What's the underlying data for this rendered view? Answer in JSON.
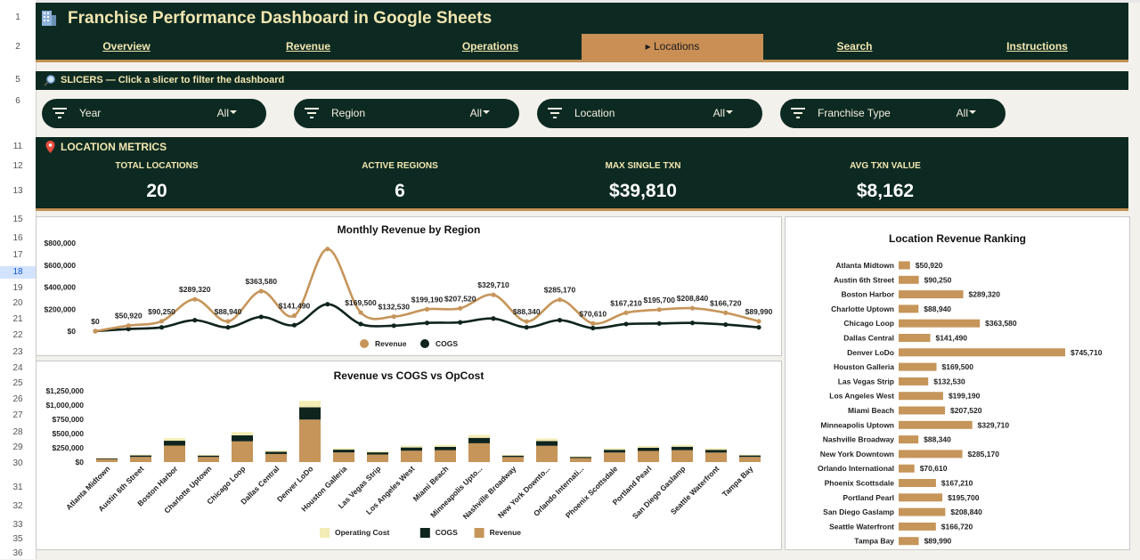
{
  "row_numbers": [
    "1",
    "2",
    "5",
    "6",
    "11",
    "12",
    "13",
    "15",
    "16",
    "17",
    "18",
    "19",
    "20",
    "21",
    "22",
    "23",
    "24",
    "25",
    "26",
    "27",
    "28",
    "29",
    "30",
    "31",
    "32",
    "33",
    "35",
    "36"
  ],
  "header": {
    "title": "Franchise Performance Dashboard in Google Sheets",
    "icon": "building-icon"
  },
  "nav": {
    "tabs": [
      "Overview",
      "Revenue",
      "Operations",
      "▸ Locations",
      "Search",
      "Instructions"
    ],
    "active": "▸ Locations"
  },
  "slicers_band": {
    "label": "SLICERS — Click a slicer to filter the dashboard",
    "icon": "magnifier-icon"
  },
  "slicers": [
    {
      "label": "Year",
      "value": "All"
    },
    {
      "label": "Region",
      "value": "All"
    },
    {
      "label": "Location",
      "value": "All"
    },
    {
      "label": "Franchise Type",
      "value": "All"
    }
  ],
  "metrics": {
    "title": "LOCATION METRICS",
    "icon": "pin-icon",
    "items": [
      {
        "label": "TOTAL LOCATIONS",
        "value": "20"
      },
      {
        "label": "ACTIVE REGIONS",
        "value": "6"
      },
      {
        "label": "MAX SINGLE TXN",
        "value": "$39,810"
      },
      {
        "label": "AVG TXN VALUE",
        "value": "$8,162"
      }
    ]
  },
  "colors": {
    "dark": "#0d2a22",
    "gold": "#c29155",
    "cream": "#f2e6b0",
    "revenue": "#c6955a",
    "cogs": "#0f241d",
    "opcost": "#f3ecb4"
  },
  "chart_data": [
    {
      "type": "line",
      "title": "Monthly Revenue by Region",
      "ylim": [
        0,
        800000
      ],
      "ytick_labels": [
        "$0",
        "$200,000",
        "$400,000",
        "$600,000",
        "$800,000"
      ],
      "legend": "bottom",
      "series": [
        {
          "name": "Revenue",
          "values": [
            0,
            50920,
            90250,
            289320,
            88940,
            363580,
            141490,
            745710,
            169500,
            132530,
            199190,
            207520,
            329710,
            88340,
            285170,
            70610,
            167210,
            195700,
            208840,
            166720,
            89990
          ],
          "labels": [
            "$0",
            "$50,920",
            "$90,250",
            "$289,320",
            "$88,940",
            "$363,580",
            "$141,490",
            "",
            "$169,500",
            "$132,530",
            "$199,190",
            "$207,520",
            "$329,710",
            "$88,340",
            "$285,170",
            "$70,610",
            "$167,210",
            "$195,700",
            "$208,840",
            "$166,720",
            "$89,990"
          ]
        },
        {
          "name": "COGS",
          "values": [
            0,
            20000,
            35000,
            100000,
            35000,
            130000,
            55000,
            245000,
            65000,
            50000,
            75000,
            80000,
            115000,
            35000,
            100000,
            28000,
            65000,
            70000,
            75000,
            60000,
            35000
          ]
        }
      ]
    },
    {
      "type": "bar",
      "stacked": true,
      "title": "Revenue vs COGS vs OpCost",
      "ylim": [
        0,
        1250000
      ],
      "ytick_labels": [
        "$0",
        "$250,000",
        "$500,000",
        "$750,000",
        "$1,000,000",
        "$1,250,000"
      ],
      "legend": "bottom",
      "categories": [
        "Atlanta Midtown",
        "Austin 6th Street",
        "Boston Harbor",
        "Charlotte Uptown",
        "Chicago Loop",
        "Dallas Central",
        "Denver LoDo",
        "Houston Galleria",
        "Las Vegas Strip",
        "Los Angeles West",
        "Miami Beach",
        "Minneapolis Upto...",
        "Nashville Broadway",
        "New York Downto...",
        "Orlando Internati...",
        "Phoenix Scottsdale",
        "Portland Pearl",
        "San Diego Gaslamp",
        "Seattle Waterfront",
        "Tampa Bay"
      ],
      "series": [
        {
          "name": "Revenue",
          "values": [
            50920,
            90250,
            289320,
            88940,
            363580,
            141490,
            745710,
            169500,
            132530,
            199190,
            207520,
            329710,
            88340,
            285170,
            70610,
            167210,
            195700,
            208840,
            166720,
            89990
          ]
        },
        {
          "name": "COGS",
          "values": [
            15000,
            26000,
            85000,
            25000,
            105000,
            40000,
            215000,
            48000,
            38000,
            57000,
            60000,
            95000,
            25000,
            82000,
            20000,
            48000,
            56000,
            60000,
            48000,
            26000
          ]
        },
        {
          "name": "Operating Cost",
          "values": [
            8000,
            14000,
            45000,
            14000,
            57000,
            22000,
            115000,
            26000,
            21000,
            31000,
            32000,
            52000,
            14000,
            45000,
            11000,
            26000,
            30000,
            33000,
            26000,
            14000
          ]
        }
      ],
      "legend_order": [
        "Operating Cost",
        "COGS",
        "Revenue"
      ]
    },
    {
      "type": "bar",
      "orientation": "horizontal",
      "title": "Location Revenue Ranking",
      "categories": [
        "Atlanta Midtown",
        "Austin 6th Street",
        "Boston Harbor",
        "Charlotte Uptown",
        "Chicago Loop",
        "Dallas Central",
        "Denver LoDo",
        "Houston Galleria",
        "Las Vegas Strip",
        "Los Angeles West",
        "Miami Beach",
        "Minneapolis Uptown",
        "Nashville Broadway",
        "New York Downtown",
        "Orlando International",
        "Phoenix Scottsdale",
        "Portland Pearl",
        "San Diego Gaslamp",
        "Seattle Waterfront",
        "Tampa Bay"
      ],
      "values": [
        50920,
        90250,
        289320,
        88940,
        363580,
        141490,
        745710,
        169500,
        132530,
        199190,
        207520,
        329710,
        88340,
        285170,
        70610,
        167210,
        195700,
        208840,
        166720,
        89990
      ],
      "labels": [
        "$50,920",
        "$90,250",
        "$289,320",
        "$88,940",
        "$363,580",
        "$141,490",
        "$745,710",
        "$169,500",
        "$132,530",
        "$199,190",
        "$207,520",
        "$329,710",
        "$88,340",
        "$285,170",
        "$70,610",
        "$167,210",
        "$195,700",
        "$208,840",
        "$166,720",
        "$89,990"
      ],
      "xlim": [
        0,
        745710
      ]
    }
  ]
}
